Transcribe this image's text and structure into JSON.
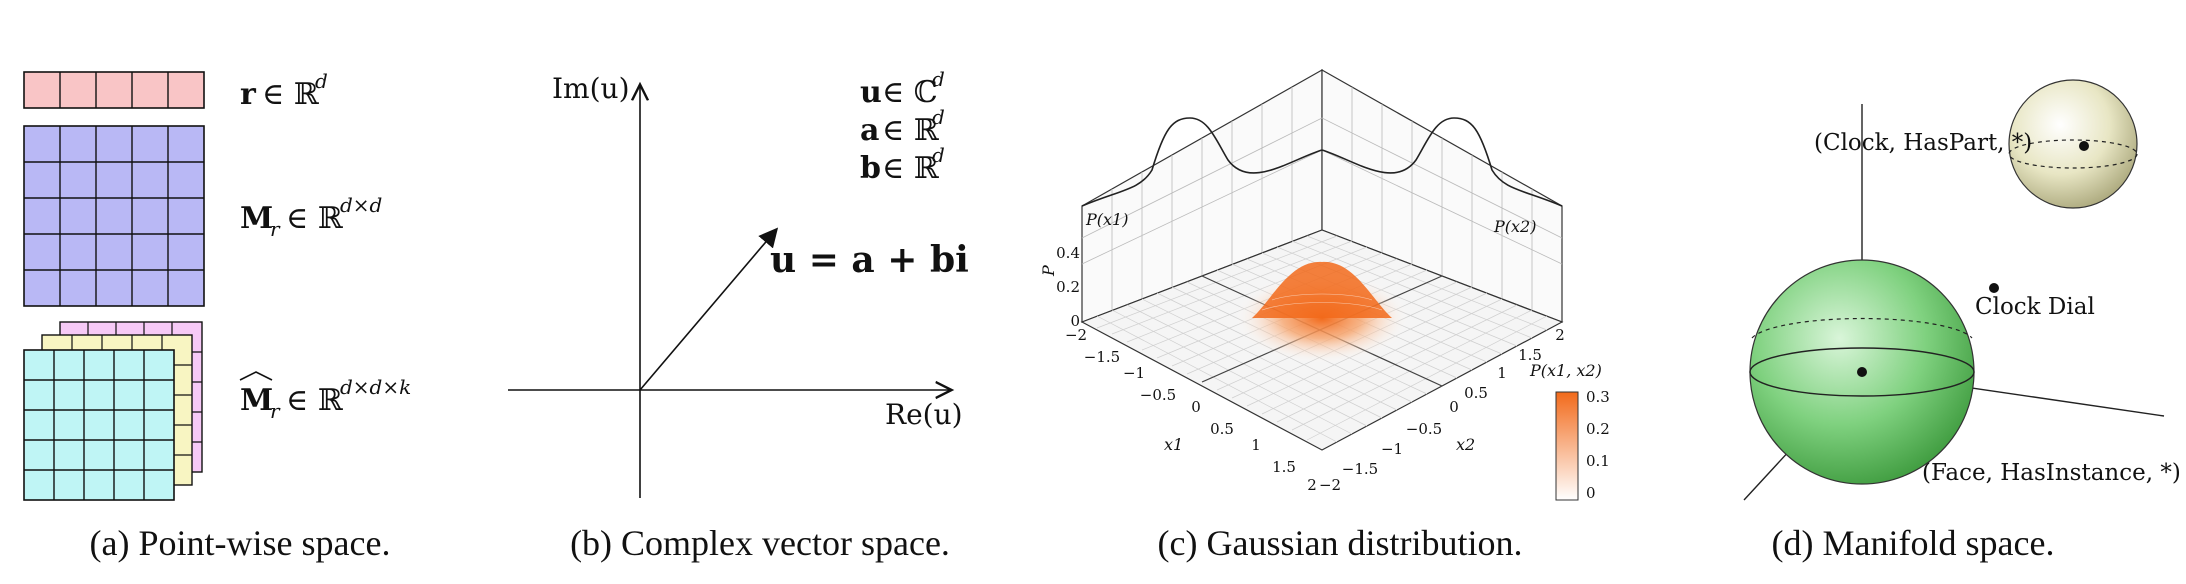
{
  "panel_a": {
    "caption": "(a) Point-wise space.",
    "colors": {
      "vector": "#f9c5c6",
      "matrix": "#b9b8f5",
      "tensor_front": "#bff5f5",
      "tensor_mid": "#f8f5c2",
      "tensor_back": "#f6c9f6"
    }
  },
  "panel_b": {
    "caption": "(b) Complex vector space.",
    "y_axis_label": "Im(u)",
    "x_axis_label": "Re(u)",
    "equation": "u = a + bi"
  },
  "panel_c": {
    "caption": "(c) Gaussian distribution.",
    "z_label": "P",
    "z_ticks": [
      "0",
      "0.2",
      "0.4"
    ],
    "x1_label": "x1",
    "x2_label": "x2",
    "x1_ticks": [
      "−2",
      "−1.5",
      "−1",
      "−0.5",
      "0",
      "0.5",
      "1",
      "1.5",
      "2"
    ],
    "x2_ticks": [
      "−2",
      "−1.5",
      "−1",
      "−0.5",
      "0",
      "0.5",
      "1",
      "1.5",
      "2"
    ],
    "marginal_x1": "P(x1)",
    "marginal_x2": "P(x2)",
    "colorbar_title": "P(x1, x2)",
    "colorbar_ticks": [
      "0.3",
      "0.2",
      "0.1",
      "0"
    ],
    "accent": "#f26a1b"
  },
  "panel_d": {
    "caption": "(d) Manifold space.",
    "label_top": "(Clock, HasPart, *)",
    "label_mid": "Clock Dial",
    "label_bottom": "(Face, HasInstance, *)",
    "colors": {
      "big_sphere": "#7fd17f",
      "small_sphere": "#e8e6c4"
    }
  }
}
